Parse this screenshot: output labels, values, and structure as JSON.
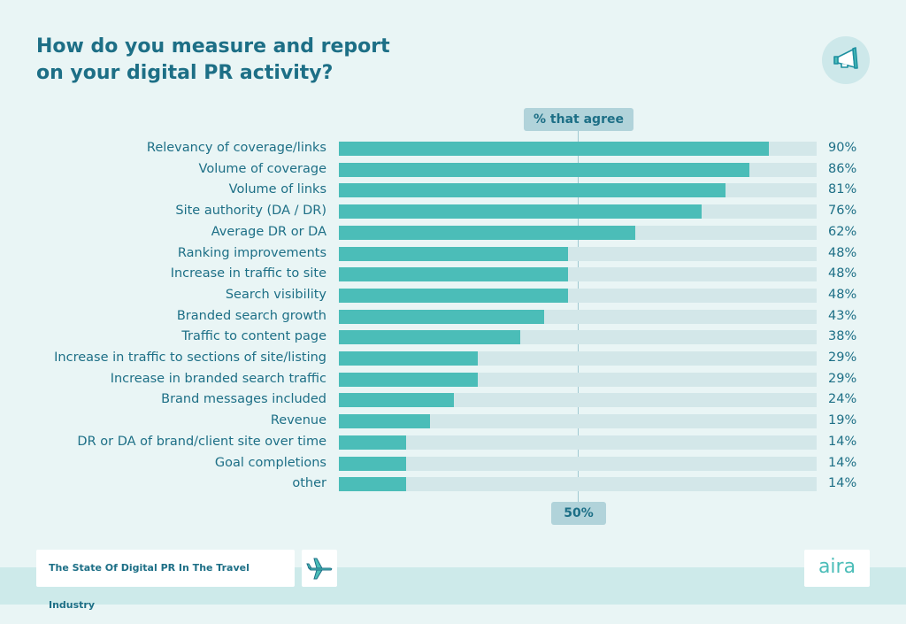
{
  "title_line1": "How do you measure and report",
  "title_line2": "on your digital PR activity?",
  "header_pill": "% that agree",
  "reference_label": "50%",
  "footer": {
    "report_title": "The State Of Digital PR In The Travel Industry",
    "logo": "aira"
  },
  "icons": {
    "top_right": "megaphone-icon",
    "footer": "airplane-icon"
  },
  "colors": {
    "bar": "#4bbdb8",
    "track": "#d3e7e9",
    "text": "#1d6f86",
    "background": "#e9f5f5"
  },
  "chart_data": {
    "type": "bar",
    "orientation": "horizontal",
    "xlim": [
      0,
      100
    ],
    "reference_line": 50,
    "categories": [
      "Relevancy of coverage/links",
      "Volume of coverage",
      "Volume of links",
      "Site authority (DA / DR)",
      "Average DR or DA",
      "Ranking improvements",
      "Increase in traffic to site",
      "Search visibility",
      "Branded search growth",
      "Traffic to content page",
      "Increase in traffic to sections of site/listing",
      "Increase in branded search traffic",
      "Brand messages included",
      "Revenue",
      "DR or DA of brand/client site over time",
      "Goal completions",
      "other"
    ],
    "values": [
      90,
      86,
      81,
      76,
      62,
      48,
      48,
      48,
      43,
      38,
      29,
      29,
      24,
      19,
      14,
      14,
      14
    ],
    "value_labels": [
      "90%",
      "86%",
      "81%",
      "76%",
      "62%",
      "48%",
      "48%",
      "48%",
      "43%",
      "38%",
      "29%",
      "29%",
      "24%",
      "19%",
      "14%",
      "14%",
      "14%"
    ]
  }
}
